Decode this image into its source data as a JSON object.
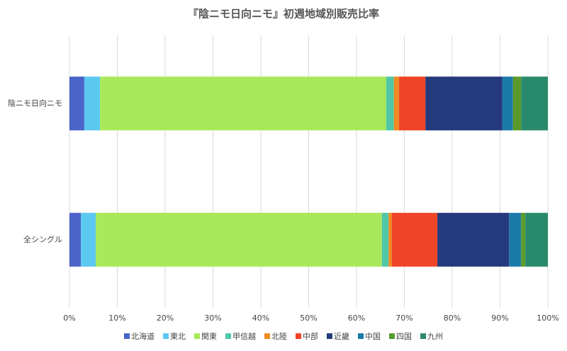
{
  "chart_data": {
    "type": "stacked-bar-horizontal",
    "title": "『陰ニモ日向ニモ』初週地域別販売比率",
    "categories": [
      "陰ニモ日向ニモ",
      "全シングル"
    ],
    "series": [
      {
        "name": "北海道",
        "color": "#4a64c8",
        "values": [
          3.1,
          2.4
        ]
      },
      {
        "name": "東北",
        "color": "#5bc8f0",
        "values": [
          3.3,
          3.1
        ]
      },
      {
        "name": "関東",
        "color": "#a8e85a",
        "values": [
          59.8,
          59.8
        ]
      },
      {
        "name": "甲信越",
        "color": "#50c8a8",
        "values": [
          1.6,
          1.4
        ]
      },
      {
        "name": "北陸",
        "color": "#f08a24",
        "values": [
          1.1,
          0.7
        ]
      },
      {
        "name": "中部",
        "color": "#f04426",
        "values": [
          5.5,
          9.5
        ]
      },
      {
        "name": "近畿",
        "color": "#253a7c",
        "values": [
          16.1,
          15.0
        ]
      },
      {
        "name": "中国",
        "color": "#1a7aaa",
        "values": [
          2.2,
          2.5
        ]
      },
      {
        "name": "四国",
        "color": "#5c9a2a",
        "values": [
          1.7,
          0.9
        ]
      },
      {
        "name": "九州",
        "color": "#2a8a6c",
        "values": [
          5.6,
          4.7
        ]
      }
    ],
    "xlim": [
      0,
      100
    ],
    "xticks": [
      {
        "value": 0,
        "label": "0%"
      },
      {
        "value": 10,
        "label": "10%"
      },
      {
        "value": 20,
        "label": "20%"
      },
      {
        "value": 30,
        "label": "30%"
      },
      {
        "value": 40,
        "label": "40%"
      },
      {
        "value": 50,
        "label": "50%"
      },
      {
        "value": 60,
        "label": "60%"
      },
      {
        "value": 70,
        "label": "70%"
      },
      {
        "value": 80,
        "label": "80%"
      },
      {
        "value": 90,
        "label": "90%"
      },
      {
        "value": 100,
        "label": "100%"
      }
    ],
    "grid": true,
    "legend": "bottom"
  }
}
